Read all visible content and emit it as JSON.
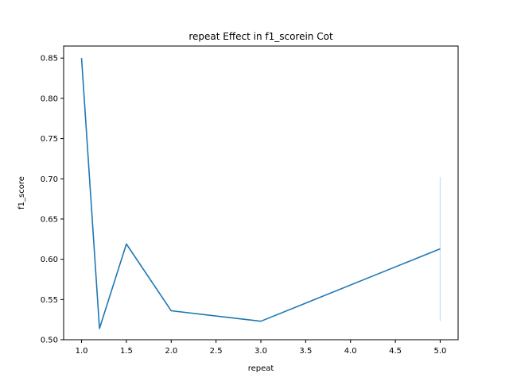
{
  "chart_data": {
    "type": "line",
    "title": "repeat Effect in f1_scorein Cot",
    "xlabel": "repeat",
    "ylabel": "f1_score",
    "xlim": [
      0.8,
      5.2
    ],
    "ylim": [
      0.5,
      0.865
    ],
    "xticks": [
      "1.0",
      "1.5",
      "2.0",
      "2.5",
      "3.0",
      "3.5",
      "4.0",
      "4.5",
      "5.0"
    ],
    "yticks": [
      "0.50",
      "0.55",
      "0.60",
      "0.65",
      "0.70",
      "0.75",
      "0.80",
      "0.85"
    ],
    "grid": false,
    "series": [
      {
        "x": [
          1.0,
          1.2,
          1.5,
          2.0,
          3.0,
          5.0
        ],
        "y": [
          0.85,
          0.514,
          0.619,
          0.536,
          0.523,
          0.613
        ],
        "error_band": {
          "x": 5.0,
          "low": 0.523,
          "high": 0.702
        }
      }
    ],
    "colors": {
      "line": "#1f77b4",
      "band": "#c6dbef",
      "axes": "#000000"
    }
  }
}
